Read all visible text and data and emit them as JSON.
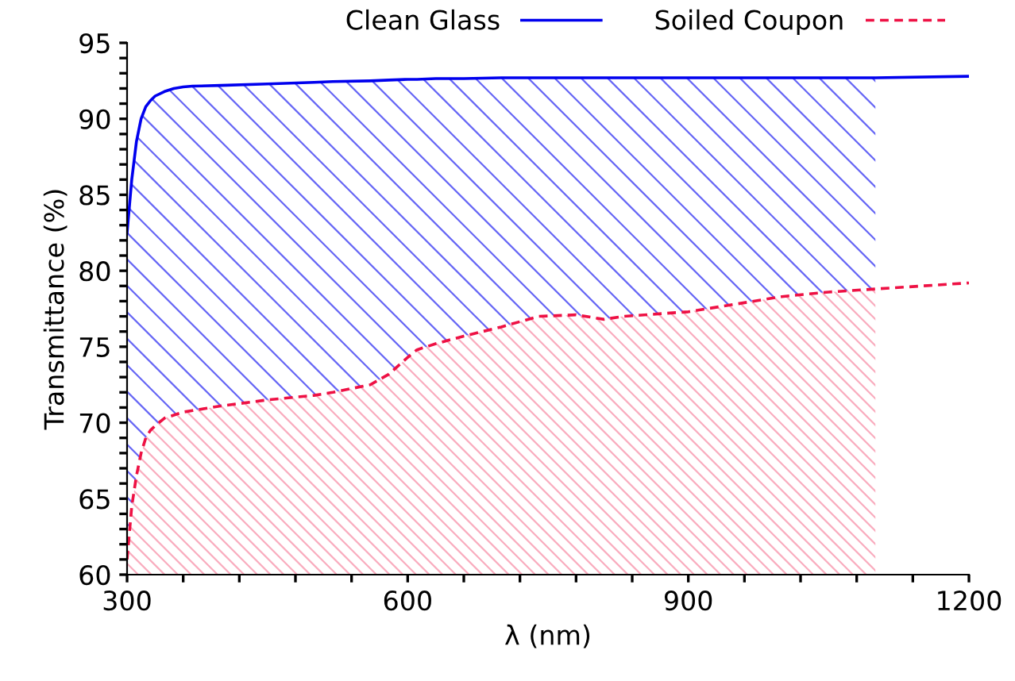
{
  "chart_data": {
    "type": "line",
    "xlabel": "λ (nm)",
    "ylabel": "Transmittance (%)",
    "x": [
      300,
      305,
      310,
      315,
      320,
      325,
      330,
      340,
      350,
      360,
      370,
      400,
      450,
      500,
      520,
      560,
      580,
      600,
      610,
      630,
      660,
      700,
      740,
      780,
      810,
      830,
      900,
      950,
      1000,
      1050,
      1100,
      1200
    ],
    "series": [
      {
        "name": "Clean Glass",
        "color": "#0000ee",
        "line_style": "solid",
        "values": [
          82.5,
          86,
          88.5,
          90,
          90.8,
          91.2,
          91.5,
          91.8,
          92,
          92.1,
          92.15,
          92.2,
          92.3,
          92.4,
          92.45,
          92.5,
          92.55,
          92.6,
          92.6,
          92.65,
          92.65,
          92.7,
          92.7,
          92.7,
          92.7,
          92.7,
          92.7,
          92.7,
          92.7,
          92.7,
          92.7,
          92.8
        ],
        "upper": [
          82.5,
          86,
          88.5,
          90,
          90.8,
          91.2,
          91.5,
          91.8,
          92,
          92.1,
          92.15,
          92.2,
          92.3,
          92.4,
          92.45,
          92.5,
          92.55,
          92.6,
          92.6,
          92.65,
          92.65,
          92.7,
          92.7,
          92.7,
          92.7,
          92.7,
          92.7,
          92.7,
          92.7,
          92.7,
          92.7,
          null
        ],
        "lower": [
          61,
          64.5,
          66.5,
          68,
          69,
          69.5,
          69.8,
          70.3,
          70.5,
          70.7,
          70.8,
          71.1,
          71.5,
          71.8,
          72,
          72.5,
          73.2,
          74.3,
          74.8,
          75.2,
          75.7,
          76.3,
          77,
          77.1,
          76.8,
          77,
          77.3,
          77.8,
          78.3,
          78.6,
          78.8,
          null
        ]
      },
      {
        "name": "Soiled Coupon",
        "color": "#ee1144",
        "line_style": "dashed",
        "values": [
          61,
          64.5,
          66.5,
          68,
          69,
          69.5,
          69.8,
          70.3,
          70.5,
          70.7,
          70.8,
          71.1,
          71.5,
          71.8,
          72,
          72.5,
          73.2,
          74.3,
          74.8,
          75.2,
          75.7,
          76.3,
          77,
          77.1,
          76.8,
          77,
          77.3,
          77.8,
          78.3,
          78.6,
          78.8,
          79.2
        ],
        "upper": [
          61,
          64.5,
          66.5,
          68,
          69,
          69.5,
          69.8,
          70.3,
          70.5,
          70.7,
          70.8,
          71.1,
          71.5,
          71.8,
          72,
          72.5,
          73.2,
          74.3,
          74.8,
          75.2,
          75.7,
          76.3,
          77,
          77.1,
          76.8,
          77,
          77.3,
          77.8,
          78.3,
          78.6,
          78.8,
          null
        ],
        "lower": [
          60,
          60,
          60,
          60,
          60,
          60,
          60,
          60,
          60,
          60,
          60,
          60,
          60,
          60,
          60,
          60,
          60,
          60,
          60,
          60,
          60,
          60,
          60,
          60,
          60,
          60,
          60,
          60,
          60,
          60,
          60,
          null
        ]
      }
    ],
    "xlim": [
      300,
      1200
    ],
    "ylim": [
      60,
      95
    ],
    "xticks": [
      300,
      {
        "value": 360,
        "label": null
      },
      {
        "value": 420,
        "label": null
      },
      {
        "value": 480,
        "label": null
      },
      {
        "value": 540,
        "label": null
      },
      600,
      {
        "value": 660,
        "label": null
      },
      {
        "value": 720,
        "label": null
      },
      {
        "value": 780,
        "label": null
      },
      {
        "value": 840,
        "label": null
      },
      900,
      {
        "value": 960,
        "label": null
      },
      {
        "value": 1020,
        "label": null
      },
      {
        "value": 1080,
        "label": null
      },
      {
        "value": 1140,
        "label": null
      },
      1200
    ],
    "yticks": [
      60,
      {
        "value": 61,
        "label": null
      },
      {
        "value": 62,
        "label": null
      },
      {
        "value": 63,
        "label": null
      },
      {
        "value": 64,
        "label": null
      },
      65,
      {
        "value": 66,
        "label": null
      },
      {
        "value": 67,
        "label": null
      },
      {
        "value": 68,
        "label": null
      },
      {
        "value": 69,
        "label": null
      },
      70,
      {
        "value": 71,
        "label": null
      },
      {
        "value": 72,
        "label": null
      },
      {
        "value": 73,
        "label": null
      },
      {
        "value": 74,
        "label": null
      },
      75,
      {
        "value": 76,
        "label": null
      },
      {
        "value": 77,
        "label": null
      },
      {
        "value": 78,
        "label": null
      },
      {
        "value": 79,
        "label": null
      },
      80,
      {
        "value": 81,
        "label": null
      },
      {
        "value": 82,
        "label": null
      },
      {
        "value": 83,
        "label": null
      },
      {
        "value": 84,
        "label": null
      },
      85,
      {
        "value": 86,
        "label": null
      },
      {
        "value": 87,
        "label": null
      },
      {
        "value": 88,
        "label": null
      },
      {
        "value": 89,
        "label": null
      },
      90,
      {
        "value": 91,
        "label": null
      },
      {
        "value": 92,
        "label": null
      },
      {
        "value": 93,
        "label": null
      },
      {
        "value": 94,
        "label": null
      },
      95
    ],
    "grid": false,
    "legend": "top right",
    "marker": "none"
  }
}
